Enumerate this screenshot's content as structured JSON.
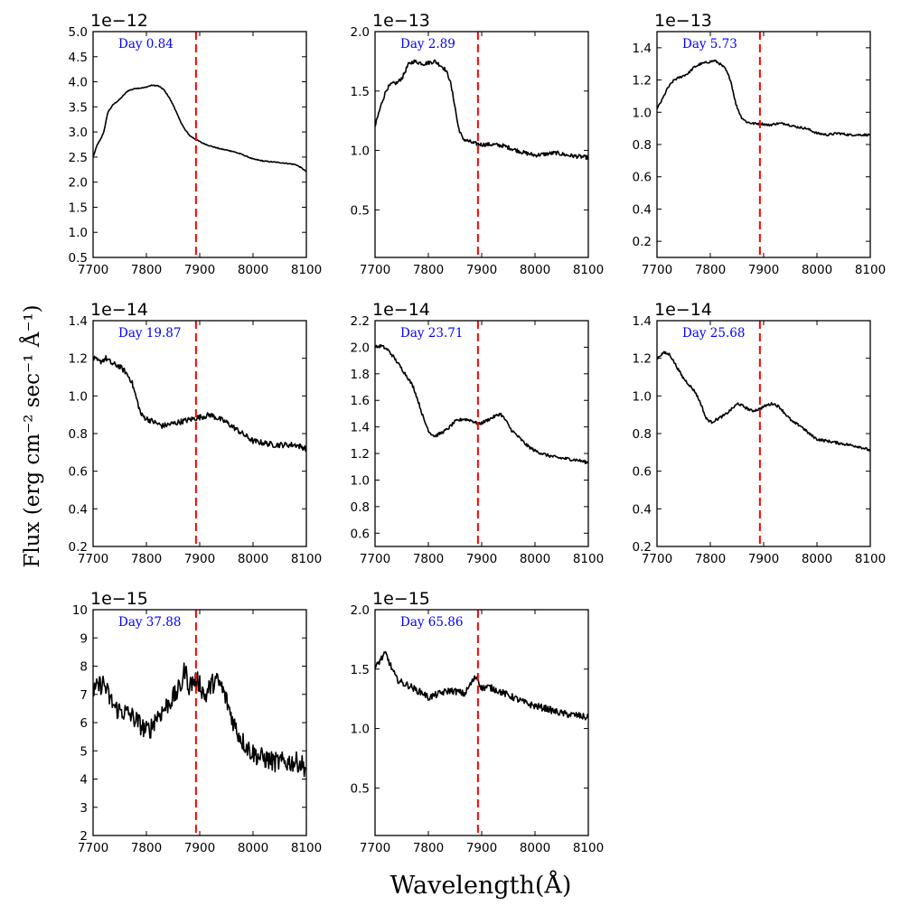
{
  "figure": {
    "ylabel": "Flux (erg cm⁻² sec⁻¹ Å⁻¹)",
    "xlabel": "Wavelength(Å)",
    "line_color": "#000000",
    "marker_color": "#ff0000",
    "annotation_color": "#0000ff"
  },
  "chart_data": [
    {
      "type": "line",
      "panel": 1,
      "annotation": "Day 0.84",
      "offset_label": "1e−12",
      "xlim": [
        7700,
        8100
      ],
      "ylim": [
        0.5,
        5.0
      ],
      "xticks": [
        7700,
        7800,
        7900,
        8000,
        8100
      ],
      "yticks": [
        0.5,
        1.0,
        1.5,
        2.0,
        2.5,
        3.0,
        3.5,
        4.0,
        4.5,
        5.0
      ],
      "ytick_labels": [
        "0.5",
        "1.0",
        "1.5",
        "2.0",
        "2.5",
        "3.0",
        "3.5",
        "4.0",
        "4.5",
        "5.0"
      ],
      "vline_x": 7893,
      "noise": 0.004,
      "x": [
        7700,
        7708,
        7714,
        7720,
        7728,
        7738,
        7750,
        7765,
        7780,
        7795,
        7810,
        7822,
        7832,
        7842,
        7852,
        7862,
        7872,
        7882,
        7893,
        7905,
        7920,
        7940,
        7960,
        7980,
        8000,
        8020,
        8040,
        8060,
        8080,
        8090,
        8100
      ],
      "y": [
        2.5,
        2.75,
        2.85,
        3.0,
        3.4,
        3.55,
        3.65,
        3.82,
        3.87,
        3.88,
        3.93,
        3.92,
        3.85,
        3.7,
        3.5,
        3.25,
        3.05,
        2.92,
        2.85,
        2.78,
        2.72,
        2.66,
        2.62,
        2.55,
        2.46,
        2.42,
        2.4,
        2.38,
        2.35,
        2.29,
        2.21
      ]
    },
    {
      "type": "line",
      "panel": 2,
      "annotation": "Day 2.89",
      "offset_label": "1e−13",
      "xlim": [
        7700,
        8100
      ],
      "ylim": [
        0.1,
        2.0
      ],
      "xticks": [
        7700,
        7800,
        7900,
        8000,
        8100
      ],
      "yticks": [
        0.5,
        1.0,
        1.5,
        2.0
      ],
      "ytick_labels": [
        "0.5",
        "1.0",
        "1.5",
        "2.0"
      ],
      "vline_x": 7893,
      "noise": 0.018,
      "x": [
        7700,
        7706,
        7714,
        7722,
        7732,
        7742,
        7752,
        7762,
        7772,
        7782,
        7792,
        7802,
        7812,
        7822,
        7832,
        7840,
        7848,
        7856,
        7864,
        7874,
        7885,
        7900,
        7920,
        7940,
        7960,
        7980,
        8000,
        8020,
        8040,
        8060,
        8080,
        8100
      ],
      "y": [
        1.2,
        1.3,
        1.42,
        1.52,
        1.56,
        1.57,
        1.62,
        1.72,
        1.75,
        1.74,
        1.73,
        1.74,
        1.75,
        1.72,
        1.68,
        1.6,
        1.42,
        1.2,
        1.1,
        1.08,
        1.06,
        1.05,
        1.05,
        1.04,
        1.01,
        0.98,
        0.96,
        0.97,
        0.98,
        0.96,
        0.95,
        0.94
      ]
    },
    {
      "type": "line",
      "panel": 3,
      "annotation": "Day 5.73",
      "offset_label": "1e−13",
      "xlim": [
        7700,
        8100
      ],
      "ylim": [
        0.1,
        1.5
      ],
      "xticks": [
        7700,
        7800,
        7900,
        8000,
        8100
      ],
      "yticks": [
        0.2,
        0.4,
        0.6,
        0.8,
        1.0,
        1.2,
        1.4
      ],
      "ytick_labels": [
        "0.2",
        "0.4",
        "0.6",
        "0.8",
        "1.0",
        "1.2",
        "1.4"
      ],
      "vline_x": 7893,
      "noise": 0.01,
      "x": [
        7700,
        7710,
        7720,
        7732,
        7745,
        7758,
        7770,
        7782,
        7795,
        7808,
        7818,
        7828,
        7838,
        7848,
        7858,
        7868,
        7880,
        7895,
        7910,
        7925,
        7940,
        7960,
        7980,
        8000,
        8020,
        8040,
        8060,
        8080,
        8100
      ],
      "y": [
        1.02,
        1.08,
        1.15,
        1.2,
        1.22,
        1.24,
        1.28,
        1.3,
        1.31,
        1.32,
        1.3,
        1.27,
        1.2,
        1.05,
        0.97,
        0.94,
        0.93,
        0.93,
        0.92,
        0.93,
        0.93,
        0.91,
        0.9,
        0.87,
        0.86,
        0.87,
        0.86,
        0.86,
        0.86
      ]
    },
    {
      "type": "line",
      "panel": 4,
      "annotation": "Day 19.87",
      "offset_label": "1e−14",
      "xlim": [
        7700,
        8100
      ],
      "ylim": [
        0.2,
        1.4
      ],
      "xticks": [
        7700,
        7800,
        7900,
        8000,
        8100
      ],
      "yticks": [
        0.2,
        0.4,
        0.6,
        0.8,
        1.0,
        1.2,
        1.4
      ],
      "ytick_labels": [
        "0.2",
        "0.4",
        "0.6",
        "0.8",
        "1.0",
        "1.2",
        "1.4"
      ],
      "vline_x": 7893,
      "noise": 0.025,
      "x": [
        7700,
        7712,
        7724,
        7736,
        7748,
        7760,
        7772,
        7780,
        7790,
        7800,
        7815,
        7830,
        7845,
        7860,
        7875,
        7890,
        7905,
        7920,
        7935,
        7950,
        7965,
        7980,
        8000,
        8020,
        8040,
        8060,
        8080,
        8100
      ],
      "y": [
        1.2,
        1.18,
        1.2,
        1.17,
        1.16,
        1.13,
        1.08,
        1.0,
        0.9,
        0.88,
        0.86,
        0.84,
        0.85,
        0.86,
        0.87,
        0.88,
        0.89,
        0.9,
        0.88,
        0.86,
        0.83,
        0.8,
        0.76,
        0.75,
        0.74,
        0.74,
        0.74,
        0.72
      ]
    },
    {
      "type": "line",
      "panel": 5,
      "annotation": "Day 23.71",
      "offset_label": "1e−14",
      "xlim": [
        7700,
        8100
      ],
      "ylim": [
        0.5,
        2.2
      ],
      "xticks": [
        7700,
        7800,
        7900,
        8000,
        8100
      ],
      "yticks": [
        0.6,
        0.8,
        1.0,
        1.2,
        1.4,
        1.6,
        1.8,
        2.0,
        2.2
      ],
      "ytick_labels": [
        "0.6",
        "0.8",
        "1.0",
        "1.2",
        "1.4",
        "1.6",
        "1.8",
        "2.0",
        "2.2"
      ],
      "vline_x": 7893,
      "noise": 0.014,
      "x": [
        7700,
        7712,
        7724,
        7736,
        7748,
        7760,
        7772,
        7782,
        7792,
        7802,
        7812,
        7822,
        7835,
        7850,
        7865,
        7880,
        7895,
        7910,
        7925,
        7935,
        7945,
        7955,
        7970,
        7985,
        8000,
        8020,
        8040,
        8060,
        8080,
        8100
      ],
      "y": [
        2.0,
        2.01,
        1.98,
        1.92,
        1.85,
        1.78,
        1.7,
        1.58,
        1.45,
        1.36,
        1.33,
        1.35,
        1.38,
        1.44,
        1.46,
        1.45,
        1.42,
        1.45,
        1.48,
        1.5,
        1.45,
        1.38,
        1.32,
        1.26,
        1.22,
        1.19,
        1.17,
        1.16,
        1.15,
        1.13
      ]
    },
    {
      "type": "line",
      "panel": 6,
      "annotation": "Day 25.68",
      "offset_label": "1e−14",
      "xlim": [
        7700,
        8100
      ],
      "ylim": [
        0.2,
        1.4
      ],
      "xticks": [
        7700,
        7800,
        7900,
        8000,
        8100
      ],
      "yticks": [
        0.2,
        0.4,
        0.6,
        0.8,
        1.0,
        1.2,
        1.4
      ],
      "ytick_labels": [
        "0.2",
        "0.4",
        "0.6",
        "0.8",
        "1.0",
        "1.2",
        "1.4"
      ],
      "vline_x": 7893,
      "noise": 0.012,
      "x": [
        7700,
        7712,
        7724,
        7736,
        7748,
        7760,
        7772,
        7782,
        7792,
        7802,
        7815,
        7828,
        7840,
        7852,
        7865,
        7878,
        7892,
        7905,
        7918,
        7930,
        7942,
        7955,
        7970,
        7985,
        8000,
        8020,
        8040,
        8060,
        8080,
        8100
      ],
      "y": [
        1.2,
        1.23,
        1.22,
        1.16,
        1.1,
        1.06,
        1.02,
        0.96,
        0.88,
        0.86,
        0.88,
        0.9,
        0.93,
        0.96,
        0.94,
        0.92,
        0.93,
        0.95,
        0.96,
        0.94,
        0.9,
        0.86,
        0.84,
        0.8,
        0.77,
        0.76,
        0.75,
        0.74,
        0.73,
        0.71
      ]
    },
    {
      "type": "line",
      "panel": 7,
      "annotation": "Day 37.88",
      "offset_label": "1e−15",
      "xlim": [
        7700,
        8100
      ],
      "ylim": [
        2,
        10
      ],
      "xticks": [
        7700,
        7800,
        7900,
        8000,
        8100
      ],
      "yticks": [
        2,
        3,
        4,
        5,
        6,
        7,
        8,
        9,
        10
      ],
      "ytick_labels": [
        "2",
        "3",
        "4",
        "5",
        "6",
        "7",
        "8",
        "9",
        "10"
      ],
      "vline_x": 7893,
      "noise": 0.09,
      "x": [
        7700,
        7710,
        7720,
        7730,
        7742,
        7755,
        7768,
        7780,
        7790,
        7800,
        7808,
        7818,
        7830,
        7842,
        7855,
        7865,
        7872,
        7880,
        7890,
        7900,
        7910,
        7920,
        7930,
        7940,
        7950,
        7960,
        7970,
        7982,
        7995,
        8010,
        8025,
        8040,
        8055,
        8070,
        8085,
        8100
      ],
      "y": [
        7.0,
        7.3,
        7.4,
        6.9,
        6.5,
        6.4,
        6.3,
        6.1,
        5.9,
        5.7,
        5.8,
        6.2,
        6.4,
        6.7,
        7.0,
        7.3,
        7.9,
        7.3,
        7.5,
        7.4,
        6.9,
        7.3,
        7.5,
        7.3,
        6.8,
        6.2,
        5.7,
        5.3,
        5.0,
        4.8,
        4.7,
        4.6,
        4.6,
        4.6,
        4.6,
        4.4
      ]
    },
    {
      "type": "line",
      "panel": 8,
      "annotation": "Day 65.86",
      "offset_label": "1e−15",
      "xlim": [
        7700,
        8100
      ],
      "ylim": [
        0.1,
        2.0
      ],
      "xticks": [
        7700,
        7800,
        7900,
        8000,
        8100
      ],
      "yticks": [
        0.5,
        1.0,
        1.5,
        2.0
      ],
      "ytick_labels": [
        "0.5",
        "1.0",
        "1.5",
        "2.0"
      ],
      "vline_x": 7893,
      "noise": 0.03,
      "x": [
        7700,
        7710,
        7720,
        7730,
        7740,
        7752,
        7765,
        7778,
        7790,
        7800,
        7812,
        7825,
        7840,
        7855,
        7868,
        7880,
        7890,
        7900,
        7912,
        7925,
        7940,
        7955,
        7970,
        7985,
        8000,
        8020,
        8040,
        8060,
        8080,
        8100
      ],
      "y": [
        1.5,
        1.58,
        1.63,
        1.52,
        1.42,
        1.38,
        1.36,
        1.32,
        1.3,
        1.26,
        1.28,
        1.3,
        1.32,
        1.31,
        1.29,
        1.38,
        1.44,
        1.34,
        1.35,
        1.33,
        1.3,
        1.27,
        1.24,
        1.21,
        1.19,
        1.17,
        1.14,
        1.12,
        1.11,
        1.09
      ]
    }
  ]
}
